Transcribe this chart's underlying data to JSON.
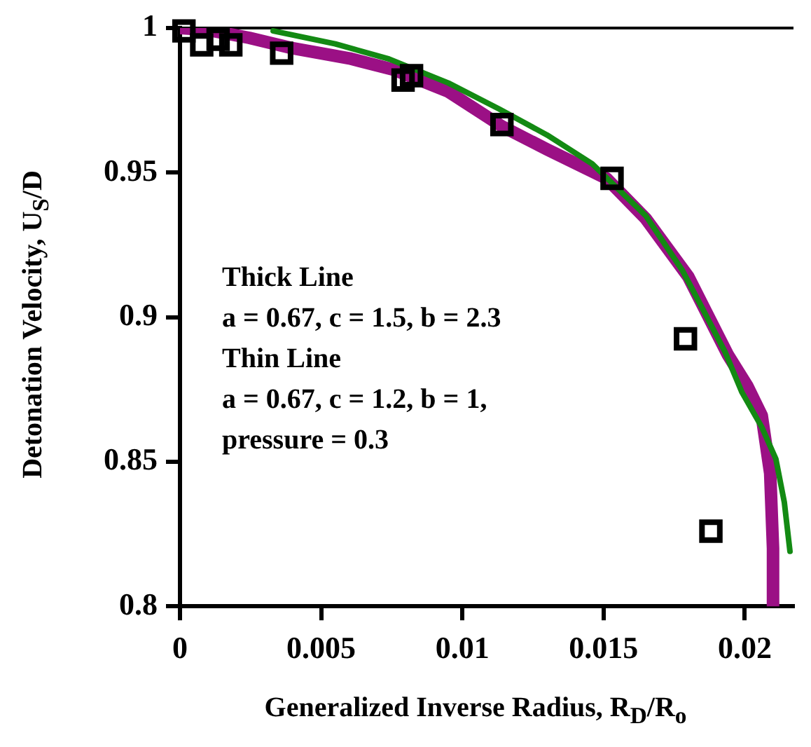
{
  "chart_data": {
    "type": "scatter",
    "xlabel": "Generalized Inverse Radius, R$_{D}$/R$_{o}$",
    "ylabel": "Detonation Velocity, U$_{S}$/D",
    "xlim": [
      0,
      0.0217
    ],
    "ylim": [
      0.8,
      1
    ],
    "xticks": [
      0,
      0.005,
      0.01,
      0.015,
      0.02
    ],
    "yticks": [
      0.8,
      0.85,
      0.9,
      0.95,
      1
    ],
    "grid": false,
    "annotations": [
      "Thick Line",
      "a = 0.67, c = 1.5, b = 2.3",
      "Thin Line",
      "a = 0.67, c = 1.2, b = 1,",
      "pressure = 0.3"
    ],
    "series": [
      {
        "type": "line",
        "color": "#9b1085",
        "marker": "none",
        "x": [
          0,
          0.001,
          0.00245,
          0.004,
          0.006,
          0.0076,
          0.0095,
          0.0114,
          0.013,
          0.0151,
          0.0165,
          0.018,
          0.0194,
          0.0201,
          0.0206,
          0.0209,
          0.021,
          0.021
        ],
        "values": [
          1,
          0.9993,
          0.9966,
          0.993,
          0.9895,
          0.9855,
          0.978,
          0.966,
          0.958,
          0.948,
          0.934,
          0.914,
          0.887,
          0.876,
          0.866,
          0.846,
          0.82,
          0.8
        ]
      },
      {
        "type": "line",
        "color": "#138a13",
        "marker": "none",
        "x": [
          0.0033,
          0.0055,
          0.0074,
          0.0095,
          0.0113,
          0.013,
          0.0146,
          0.0165,
          0.0178,
          0.0185,
          0.0193,
          0.0199,
          0.0206,
          0.0211,
          0.0214,
          0.0216
        ],
        "values": [
          0.999,
          0.9945,
          0.9893,
          0.981,
          0.972,
          0.963,
          0.953,
          0.935,
          0.916,
          0.903,
          0.888,
          0.874,
          0.862,
          0.851,
          0.836,
          0.819
        ]
      },
      {
        "type": "scatter",
        "color": "#000000",
        "marker": "square",
        "x": [
          0.00014,
          0.00077,
          0.00135,
          0.0018,
          0.0036,
          0.0079,
          0.0082,
          0.0114,
          0.0153,
          0.0179,
          0.0188
        ],
        "values": [
          0.999,
          0.9942,
          0.9961,
          0.9942,
          0.9913,
          0.982,
          0.9835,
          0.9666,
          0.948,
          0.8925,
          0.826
        ]
      }
    ]
  }
}
